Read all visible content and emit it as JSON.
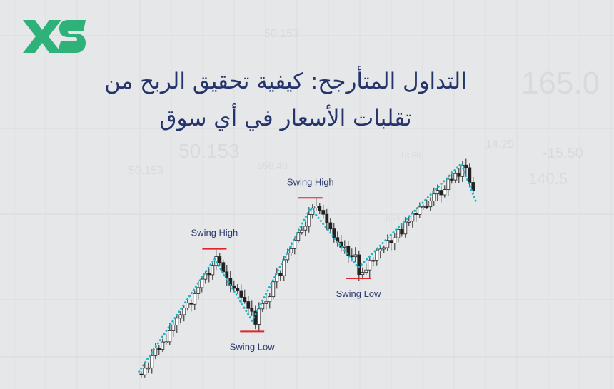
{
  "brand": {
    "logo_text": "XS",
    "color": "#2fb27a"
  },
  "title": {
    "line1": "التداول المتأرجح: كيفية تحقيق الربح من",
    "line2": "تقلبات الأسعار في أي سوق",
    "color": "#25356b"
  },
  "watermark_numbers": [
    "50.153",
    "165.0",
    "13.50",
    "50.153",
    "14.25",
    "-15.50",
    "658.48",
    "140.5",
    "50.153",
    "658.48"
  ],
  "chart_data": {
    "type": "candlestick",
    "title": "",
    "xlabel": "",
    "ylabel": "",
    "grid": true,
    "zigzag_color": "#1fb5c6",
    "swing_line_color": "#e0262b",
    "zigzag_points": [
      {
        "x": 1,
        "y": 3
      },
      {
        "x": 23,
        "y": 54
      },
      {
        "x": 34,
        "y": 26
      },
      {
        "x": 51,
        "y": 77
      },
      {
        "x": 65,
        "y": 50
      },
      {
        "x": 95,
        "y": 97
      },
      {
        "x": 99.5,
        "y": 79
      }
    ],
    "annotations": [
      {
        "label": "Swing High",
        "x": 23,
        "y": 54,
        "type": "high"
      },
      {
        "label": "Swing Low",
        "x": 34,
        "y": 26,
        "type": "low"
      },
      {
        "label": "Swing High",
        "x": 51,
        "y": 77,
        "type": "high"
      },
      {
        "label": "Swing Low",
        "x": 65,
        "y": 50,
        "type": "low"
      }
    ]
  }
}
